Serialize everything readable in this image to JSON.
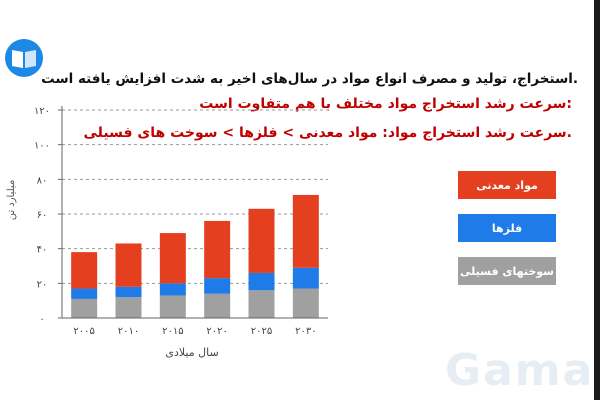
{
  "texts": {
    "line1": ".استخراج، تولید و مصرف انواع مواد در سال‌های اخیر به شدت افزایش یافته است",
    "line2": ":سرعت رشد استخراج مواد مختلف با هم متفاوت است",
    "line3": ".سرعت رشد استخراج مواد: مواد معدنی > فلزها > سوخت‌ های فسیلی"
  },
  "legend": [
    {
      "label": "مواد معدنی",
      "color": "#e4401f"
    },
    {
      "label": "فلزها",
      "color": "#1e7be8"
    },
    {
      "label": "سوختهای فسیلی",
      "color": "#a0a0a0"
    }
  ],
  "watermark": "Gama",
  "chart_data": {
    "type": "bar",
    "stacked": true,
    "xlabel": "سال میلادی",
    "ylabel": "میلیارد تن",
    "ylim": [
      0,
      120
    ],
    "yticks": [
      "۰",
      "۲۰",
      "۴۰",
      "۶۰",
      "۸۰",
      "۱۰۰",
      "۱۲۰"
    ],
    "ytick_values": [
      0,
      20,
      40,
      60,
      80,
      100,
      120
    ],
    "grid": true,
    "categories": [
      "۲۰۰۵",
      "۲۰۱۰",
      "۲۰۱۵",
      "۲۰۲۰",
      "۲۰۲۵",
      "۲۰۳۰"
    ],
    "series": [
      {
        "name": "سوختهای فسیلی",
        "color": "#a0a0a0",
        "values": [
          11,
          12,
          13,
          14,
          16,
          17
        ]
      },
      {
        "name": "فلزها",
        "color": "#1e7be8",
        "values": [
          6,
          6,
          7,
          9,
          10,
          12
        ]
      },
      {
        "name": "مواد معدنی",
        "color": "#e4401f",
        "values": [
          21,
          25,
          29,
          33,
          37,
          42
        ]
      }
    ]
  }
}
